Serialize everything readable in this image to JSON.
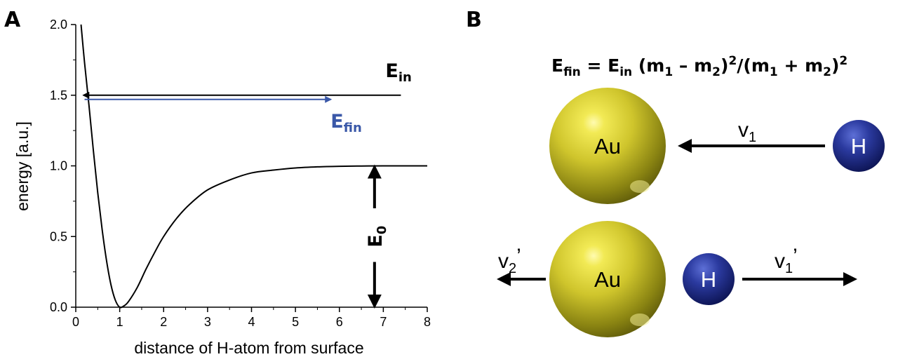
{
  "panels": {
    "a_label": "A",
    "b_label": "B"
  },
  "chart_data": {
    "type": "line",
    "title": "",
    "xlabel": "distance of H-atom from surface",
    "ylabel": "energy [a.u.]",
    "xlim": [
      0,
      8
    ],
    "ylim": [
      0,
      2
    ],
    "x_ticks": [
      0,
      1,
      2,
      3,
      4,
      5,
      6,
      7,
      8
    ],
    "y_ticks": [
      0.0,
      0.5,
      1.0,
      1.5,
      2.0
    ],
    "x_tick_labels": [
      "0",
      "1",
      "2",
      "3",
      "4",
      "5",
      "6",
      "7",
      "8"
    ],
    "y_tick_labels": [
      "0.0",
      "0.5",
      "1.0",
      "1.5",
      "2.0"
    ],
    "grid": false,
    "series": [
      {
        "points": [
          [
            0.12,
            2.0
          ],
          [
            0.2,
            1.73
          ],
          [
            0.3,
            1.43
          ],
          [
            0.4,
            1.11
          ],
          [
            0.5,
            0.81
          ],
          [
            0.6,
            0.55
          ],
          [
            0.7,
            0.33
          ],
          [
            0.8,
            0.16
          ],
          [
            0.9,
            0.05
          ],
          [
            1.0,
            0.0
          ],
          [
            1.1,
            0.01
          ],
          [
            1.2,
            0.04
          ],
          [
            1.4,
            0.14
          ],
          [
            1.6,
            0.27
          ],
          [
            1.8,
            0.39
          ],
          [
            2.0,
            0.5
          ],
          [
            2.3,
            0.63
          ],
          [
            2.6,
            0.73
          ],
          [
            3.0,
            0.83
          ],
          [
            3.5,
            0.9
          ],
          [
            4.0,
            0.95
          ],
          [
            4.5,
            0.97
          ],
          [
            5.0,
            0.985
          ],
          [
            5.5,
            0.993
          ],
          [
            6.0,
            0.997
          ],
          [
            6.5,
            0.999
          ],
          [
            7.0,
            1.0
          ],
          [
            8.0,
            1.0
          ]
        ],
        "color": "#000000"
      }
    ],
    "annotations": {
      "e_in": {
        "label_main": "E",
        "label_sub": "in",
        "y": 1.5,
        "x_from": 7.4,
        "x_to": 0.18,
        "color": "#000000"
      },
      "e_fin": {
        "label_main": "E",
        "label_sub": "fin",
        "y": 1.47,
        "x_from": 0.2,
        "x_to": 5.8,
        "color": "#3a58a8"
      },
      "e0": {
        "label_main": "E",
        "label_sub": "0",
        "x": 6.8,
        "y_from": 0.0,
        "y_to": 1.0,
        "color": "#000000"
      }
    }
  },
  "diagram": {
    "formula": {
      "e": "E",
      "fin": "fin",
      "eq": " = ",
      "in": "in",
      "open1": " (m",
      "s1": "1",
      "minus": " – m",
      "s2": "2",
      "close1": ")",
      "p1": "2",
      "slash": "/(m",
      "s1b": "1",
      "plus": " + m",
      "s2b": "2",
      "close2": ")",
      "p2": "2"
    },
    "top": {
      "gold_label": "Au",
      "h_label": "H",
      "v_main": "v",
      "v_sub": "1"
    },
    "bottom": {
      "gold_label": "Au",
      "h_label": "H",
      "v2_main": "v",
      "v2_sub": "2",
      "v2_prime": "’",
      "v1_main": "v",
      "v1_sub": "1",
      "v1_prime": "’"
    },
    "colors": {
      "gold": "#c9c02a",
      "hydrogen": "#1d2b8a"
    }
  }
}
